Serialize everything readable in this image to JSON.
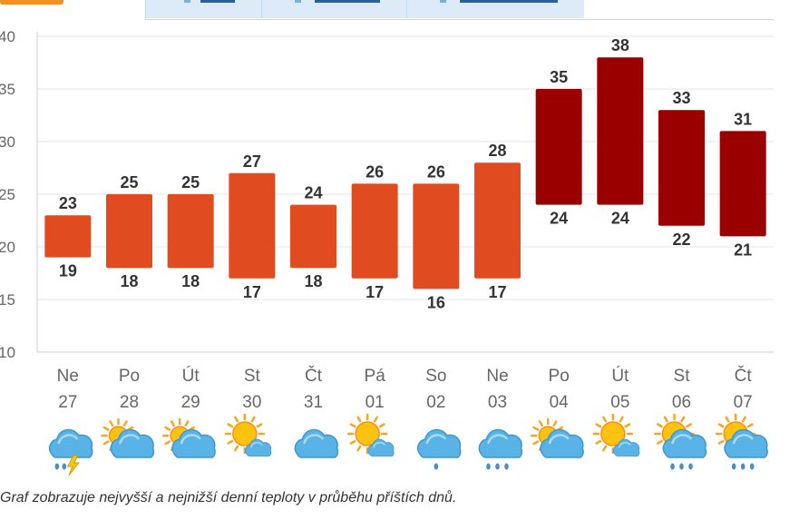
{
  "tabs": [
    {
      "name": "tab-1"
    },
    {
      "name": "tab-2"
    },
    {
      "name": "tab-3"
    }
  ],
  "caption": "Graf zobrazuje nejvyšší a nejnižší denní teploty v průběhu příštích dnů.",
  "colors": {
    "bar_normal": "#e04b1f",
    "bar_hot": "#9b0000",
    "grid": "#e4e4e4",
    "axis": "#cccccc",
    "label": "#333333",
    "axis_text": "#666666"
  },
  "chart_data": {
    "type": "bar",
    "subtype": "floating-range",
    "title": "",
    "xlabel": "",
    "ylabel": "",
    "ylim": [
      10,
      40
    ],
    "yticks": [
      10,
      15,
      20,
      25,
      30,
      35,
      40
    ],
    "grid": true,
    "categories": [
      {
        "day": "Ne",
        "date": "27"
      },
      {
        "day": "Po",
        "date": "28"
      },
      {
        "day": "Út",
        "date": "29"
      },
      {
        "day": "St",
        "date": "30"
      },
      {
        "day": "Čt",
        "date": "31"
      },
      {
        "day": "Pá",
        "date": "01"
      },
      {
        "day": "So",
        "date": "02"
      },
      {
        "day": "Ne",
        "date": "03"
      },
      {
        "day": "Po",
        "date": "04"
      },
      {
        "day": "Út",
        "date": "05"
      },
      {
        "day": "St",
        "date": "06"
      },
      {
        "day": "Čt",
        "date": "07"
      }
    ],
    "series": [
      {
        "values": [
          23,
          25,
          25,
          27,
          24,
          26,
          26,
          28,
          35,
          38,
          33,
          31
        ]
      },
      {
        "values": [
          19,
          18,
          18,
          17,
          18,
          17,
          16,
          17,
          24,
          24,
          22,
          21
        ]
      }
    ],
    "hot_threshold": 30,
    "weather_icons": [
      "storm-rain-icon",
      "partly-cloudy-icon",
      "partly-cloudy-icon",
      "sun-cloud-icon",
      "cloud-icon",
      "sun-cloud-icon",
      "cloud-rain-icon",
      "cloud-rain-icon",
      "partly-cloudy-icon",
      "sun-cloud-icon",
      "sun-cloud-rain-icon",
      "sun-cloud-rain-icon"
    ]
  }
}
